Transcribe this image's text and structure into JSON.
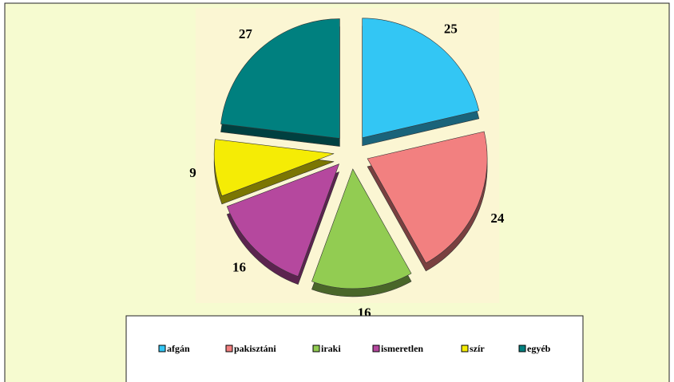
{
  "chart_data": {
    "type": "pie",
    "categories": [
      "afgán",
      "pakisztáni",
      "iraki",
      "ismeretlen",
      "szír",
      "egyéb"
    ],
    "values": [
      25,
      24,
      16,
      16,
      9,
      27
    ],
    "colors": [
      "#33c6f4",
      "#f28080",
      "#92cc52",
      "#b5489e",
      "#f5ec05",
      "#00807f"
    ],
    "legend": "bottom"
  }
}
